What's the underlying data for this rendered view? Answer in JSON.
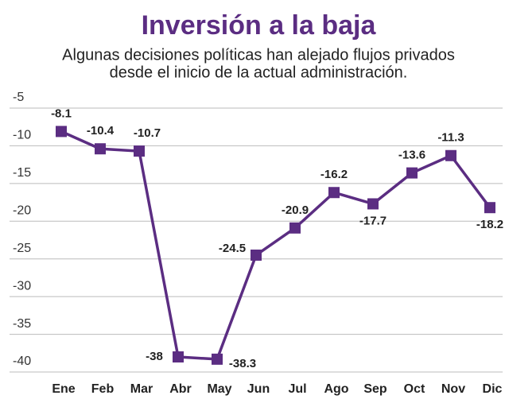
{
  "chart_data": {
    "type": "line",
    "title": "Inversión a la baja",
    "subtitle": [
      "Algunas decisiones políticas han alejado flujos privados",
      "desde el inicio de la actual administración."
    ],
    "categories": [
      "Ene",
      "Feb",
      "Mar",
      "Abr",
      "May",
      "Jun",
      "Jul",
      "Ago",
      "Sep",
      "Oct",
      "Nov",
      "Dic"
    ],
    "values": [
      -8.1,
      -10.4,
      -10.7,
      -38,
      -38.3,
      -24.5,
      -20.9,
      -16.2,
      -17.7,
      -13.6,
      -11.3,
      -18.2
    ],
    "color": "#5b2d82",
    "ylim": [
      -40,
      -5
    ],
    "yticks": [
      -5,
      -10,
      -15,
      -20,
      -25,
      -30,
      -35,
      -40
    ],
    "grid": true
  }
}
